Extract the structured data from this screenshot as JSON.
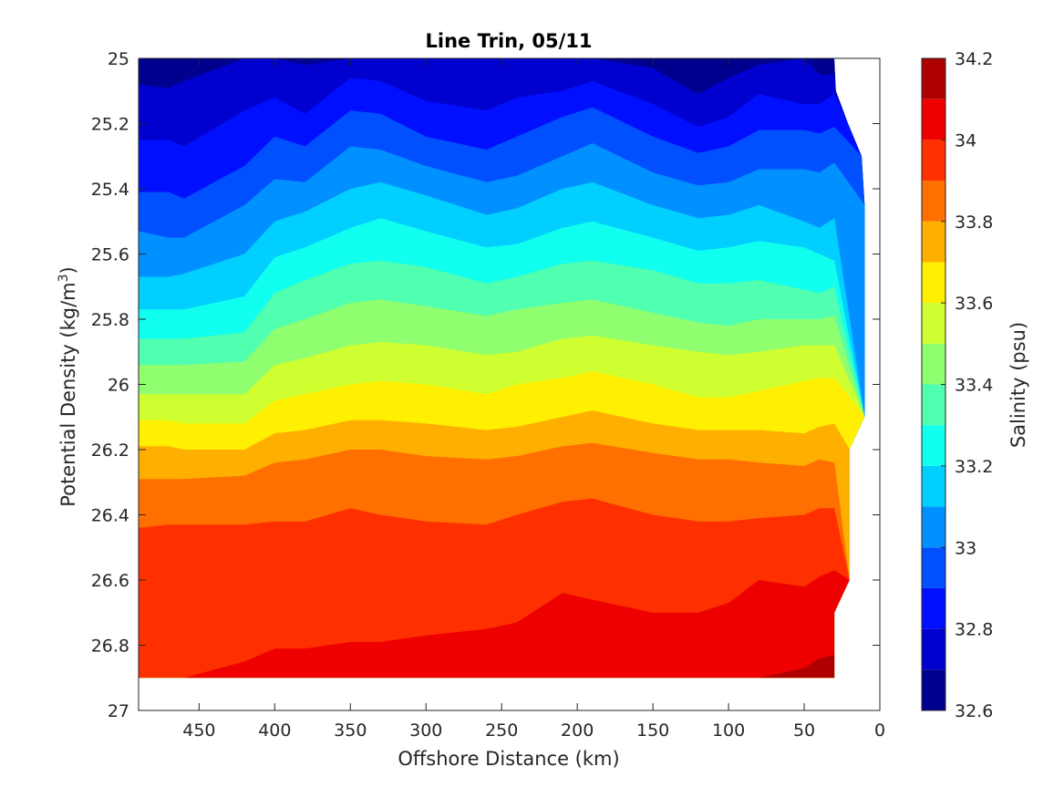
{
  "chart_data": {
    "type": "contourf",
    "title": "Line Trin, 05/11",
    "xlabel": "Offshore Distance (km)",
    "ylabel": "Potential Density (kg/m",
    "ylabel_sup": "3",
    "ylabel_tail": ")",
    "colorbar_label": "Salinity (psu)",
    "xlim": [
      490,
      0
    ],
    "x_direction": "reversed",
    "ylim": [
      25,
      27
    ],
    "y_direction": "reversed",
    "x_ticks": [
      450,
      400,
      350,
      300,
      250,
      200,
      150,
      100,
      50,
      0
    ],
    "x_tick_labels": [
      "450",
      "400",
      "350",
      "300",
      "250",
      "200",
      "150",
      "100",
      "50",
      "0"
    ],
    "y_ticks": [
      25,
      25.2,
      25.4,
      25.6,
      25.8,
      26,
      26.2,
      26.4,
      26.6,
      26.8,
      27
    ],
    "y_tick_labels": [
      "25",
      "25.2",
      "25.4",
      "25.6",
      "25.8",
      "26",
      "26.2",
      "26.4",
      "26.6",
      "26.8",
      "27"
    ],
    "colorbar_ticks": [
      32.6,
      32.8,
      33,
      33.2,
      33.4,
      33.6,
      33.8,
      34,
      34.2
    ],
    "colorbar_tick_labels": [
      "32.6",
      "32.8",
      "33",
      "33.2",
      "33.4",
      "33.6",
      "33.8",
      "34",
      "34.2"
    ],
    "colorbar_range": [
      32.6,
      34.2
    ],
    "levels": [
      32.6,
      32.7,
      32.8,
      32.9,
      33.0,
      33.1,
      33.2,
      33.3,
      33.4,
      33.5,
      33.6,
      33.7,
      33.8,
      33.9,
      34.0,
      34.1,
      34.2
    ],
    "level_colors": [
      "#00008f",
      "#0000cf",
      "#0010ff",
      "#0050ff",
      "#0090ff",
      "#00cfff",
      "#10ffef",
      "#50ffaf",
      "#90ff6f",
      "#cfff30",
      "#ffef00",
      "#ffaf00",
      "#ff7000",
      "#ff3000",
      "#ef0000",
      "#af0000"
    ],
    "colormap": "jet",
    "data_extent": {
      "x_deep": 30,
      "x_boundary": [
        [
          25,
          30
        ],
        [
          25.1,
          29
        ],
        [
          25.2,
          21
        ],
        [
          25.3,
          12
        ],
        [
          25.45,
          10
        ],
        [
          26.1,
          10
        ],
        [
          26.2,
          20
        ],
        [
          26.6,
          20
        ],
        [
          26.7,
          30
        ],
        [
          26.9,
          30
        ]
      ],
      "density_max": 26.9
    },
    "contours": [
      {
        "level": 32.7,
        "x": [
          490,
          470,
          460,
          420,
          400,
          380,
          350,
          330,
          300,
          260,
          240,
          210,
          190,
          150,
          120,
          100,
          80,
          50,
          40,
          30
        ],
        "y": [
          25.08,
          25.09,
          25.07,
          25.0,
          25.0,
          25.02,
          25.0,
          25.0,
          25.0,
          25.0,
          25.0,
          25.0,
          25.0,
          25.03,
          25.11,
          25.06,
          25.02,
          25.0,
          25.05,
          25.05
        ]
      },
      {
        "level": 32.8,
        "x": [
          490,
          470,
          460,
          420,
          400,
          380,
          350,
          330,
          300,
          260,
          240,
          210,
          190,
          150,
          120,
          100,
          80,
          50,
          40,
          30
        ],
        "y": [
          25.25,
          25.25,
          25.27,
          25.16,
          25.12,
          25.17,
          25.06,
          25.07,
          25.13,
          25.16,
          25.12,
          25.1,
          25.07,
          25.14,
          25.21,
          25.18,
          25.11,
          25.14,
          25.14,
          25.11
        ]
      },
      {
        "level": 32.9,
        "x": [
          490,
          470,
          460,
          420,
          400,
          380,
          350,
          330,
          300,
          260,
          240,
          210,
          190,
          150,
          120,
          100,
          80,
          50,
          40,
          30
        ],
        "y": [
          25.41,
          25.41,
          25.43,
          25.33,
          25.24,
          25.27,
          25.16,
          25.17,
          25.24,
          25.28,
          25.24,
          25.18,
          25.15,
          25.24,
          25.29,
          25.27,
          25.22,
          25.22,
          25.23,
          25.21
        ]
      },
      {
        "level": 33.0,
        "x": [
          490,
          470,
          460,
          420,
          400,
          380,
          350,
          330,
          300,
          260,
          240,
          210,
          190,
          150,
          120,
          100,
          80,
          50,
          40,
          30
        ],
        "y": [
          25.53,
          25.55,
          25.55,
          25.45,
          25.37,
          25.38,
          25.27,
          25.28,
          25.33,
          25.38,
          25.36,
          25.3,
          25.26,
          25.35,
          25.39,
          25.38,
          25.34,
          25.34,
          25.35,
          25.32
        ]
      },
      {
        "level": 33.1,
        "x": [
          490,
          470,
          460,
          420,
          400,
          380,
          350,
          330,
          300,
          260,
          240,
          210,
          190,
          150,
          120,
          100,
          80,
          50,
          40,
          30
        ],
        "y": [
          25.67,
          25.67,
          25.66,
          25.6,
          25.5,
          25.47,
          25.4,
          25.38,
          25.42,
          25.48,
          25.46,
          25.4,
          25.38,
          25.45,
          25.49,
          25.48,
          25.45,
          25.5,
          25.52,
          25.49
        ]
      },
      {
        "level": 33.2,
        "x": [
          490,
          470,
          460,
          420,
          400,
          380,
          350,
          330,
          300,
          260,
          240,
          210,
          190,
          150,
          120,
          100,
          80,
          50,
          40,
          30
        ],
        "y": [
          25.77,
          25.77,
          25.77,
          25.73,
          25.61,
          25.58,
          25.52,
          25.49,
          25.53,
          25.58,
          25.57,
          25.52,
          25.5,
          25.55,
          25.59,
          25.58,
          25.56,
          25.58,
          25.6,
          25.62
        ]
      },
      {
        "level": 33.3,
        "x": [
          490,
          470,
          460,
          420,
          400,
          380,
          350,
          330,
          300,
          260,
          240,
          210,
          190,
          150,
          120,
          100,
          80,
          50,
          40,
          30
        ],
        "y": [
          25.86,
          25.86,
          25.86,
          25.84,
          25.72,
          25.68,
          25.63,
          25.62,
          25.64,
          25.69,
          25.67,
          25.63,
          25.62,
          25.65,
          25.69,
          25.69,
          25.68,
          25.71,
          25.72,
          25.7
        ]
      },
      {
        "level": 33.4,
        "x": [
          490,
          470,
          460,
          420,
          400,
          380,
          350,
          330,
          300,
          260,
          240,
          210,
          190,
          150,
          120,
          100,
          80,
          50,
          40,
          30
        ],
        "y": [
          25.94,
          25.94,
          25.94,
          25.93,
          25.83,
          25.8,
          25.75,
          25.74,
          25.76,
          25.79,
          25.77,
          25.75,
          25.74,
          25.78,
          25.81,
          25.82,
          25.8,
          25.8,
          25.8,
          25.79
        ]
      },
      {
        "level": 33.5,
        "x": [
          490,
          470,
          460,
          420,
          400,
          380,
          350,
          330,
          300,
          260,
          240,
          210,
          190,
          150,
          120,
          100,
          80,
          50,
          40,
          30
        ],
        "y": [
          26.03,
          26.03,
          26.03,
          26.03,
          25.94,
          25.92,
          25.88,
          25.87,
          25.88,
          25.91,
          25.9,
          25.86,
          25.85,
          25.88,
          25.9,
          25.91,
          25.9,
          25.88,
          25.88,
          25.88
        ]
      },
      {
        "level": 33.6,
        "x": [
          490,
          470,
          460,
          420,
          400,
          380,
          350,
          330,
          300,
          260,
          240,
          210,
          190,
          150,
          120,
          100,
          80,
          50,
          40,
          30
        ],
        "y": [
          26.11,
          26.11,
          26.12,
          26.12,
          26.05,
          26.03,
          26.0,
          25.99,
          26.0,
          26.03,
          26.0,
          25.98,
          25.96,
          26.0,
          26.04,
          26.04,
          26.02,
          25.99,
          25.98,
          25.98
        ]
      },
      {
        "level": 33.7,
        "x": [
          490,
          470,
          460,
          420,
          400,
          380,
          350,
          330,
          300,
          260,
          240,
          210,
          190,
          150,
          120,
          100,
          80,
          50,
          40,
          30
        ],
        "y": [
          26.19,
          26.19,
          26.2,
          26.2,
          26.15,
          26.14,
          26.11,
          26.11,
          26.12,
          26.14,
          26.13,
          26.1,
          26.08,
          26.12,
          26.14,
          26.14,
          26.14,
          26.15,
          26.13,
          26.12
        ]
      },
      {
        "level": 33.8,
        "x": [
          490,
          470,
          460,
          420,
          400,
          380,
          350,
          330,
          300,
          260,
          240,
          210,
          190,
          150,
          120,
          100,
          80,
          50,
          40,
          30
        ],
        "y": [
          26.29,
          26.29,
          26.29,
          26.28,
          26.24,
          26.23,
          26.2,
          26.2,
          26.22,
          26.23,
          26.22,
          26.19,
          26.18,
          26.21,
          26.23,
          26.23,
          26.24,
          26.25,
          26.23,
          26.24
        ]
      },
      {
        "level": 33.9,
        "x": [
          490,
          470,
          460,
          420,
          400,
          380,
          350,
          330,
          300,
          260,
          240,
          210,
          190,
          150,
          120,
          100,
          80,
          50,
          40,
          30
        ],
        "y": [
          26.44,
          26.43,
          26.43,
          26.43,
          26.42,
          26.42,
          26.38,
          26.4,
          26.42,
          26.43,
          26.4,
          26.36,
          26.35,
          26.4,
          26.42,
          26.42,
          26.41,
          26.4,
          26.38,
          26.38
        ]
      },
      {
        "level": 34.0,
        "x": [
          490,
          470,
          460,
          420,
          400,
          380,
          350,
          330,
          300,
          260,
          240,
          210,
          190,
          150,
          120,
          100,
          80,
          50,
          40,
          30
        ],
        "y": [
          26.9,
          26.9,
          26.9,
          26.85,
          26.81,
          26.81,
          26.79,
          26.79,
          26.77,
          26.75,
          26.73,
          26.64,
          26.66,
          26.7,
          26.7,
          26.67,
          26.6,
          26.62,
          26.59,
          26.57
        ]
      },
      {
        "level": 34.1,
        "x": [
          490,
          470,
          460,
          420,
          400,
          380,
          350,
          330,
          300,
          260,
          240,
          210,
          190,
          150,
          120,
          100,
          80,
          50,
          40,
          30
        ],
        "y": [
          26.9,
          26.9,
          26.9,
          26.9,
          26.9,
          26.9,
          26.9,
          26.9,
          26.9,
          26.9,
          26.9,
          26.9,
          26.9,
          26.9,
          26.9,
          26.9,
          26.9,
          26.87,
          26.84,
          26.83
        ]
      }
    ],
    "grid": false
  }
}
